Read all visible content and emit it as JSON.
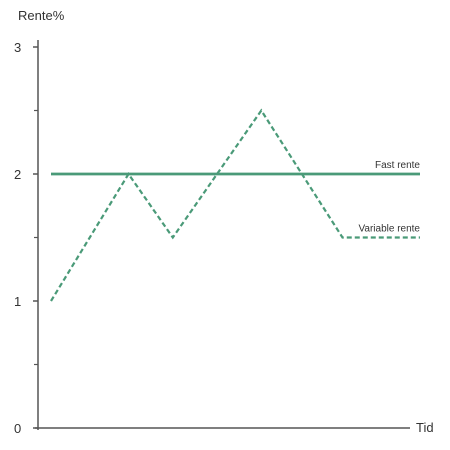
{
  "chart_data": {
    "type": "line",
    "ylabel": "Rente%",
    "xlabel": "Tid",
    "ylim": [
      0,
      3
    ],
    "yticks": [
      "0",
      "1",
      "2",
      "3"
    ],
    "grid": false,
    "colors": {
      "series": "#4a9a78",
      "axis": "#555555",
      "text": "#333333"
    },
    "series": [
      {
        "name": "Fast rente",
        "style": "solid",
        "x": [
          0,
          10
        ],
        "y": [
          2,
          2
        ]
      },
      {
        "name": "Variable rente",
        "style": "dashed",
        "x": [
          0,
          2.1,
          3.3,
          5.7,
          7.9,
          10
        ],
        "y": [
          1,
          2,
          1.5,
          2.5,
          1.5,
          1.5
        ]
      }
    ]
  }
}
